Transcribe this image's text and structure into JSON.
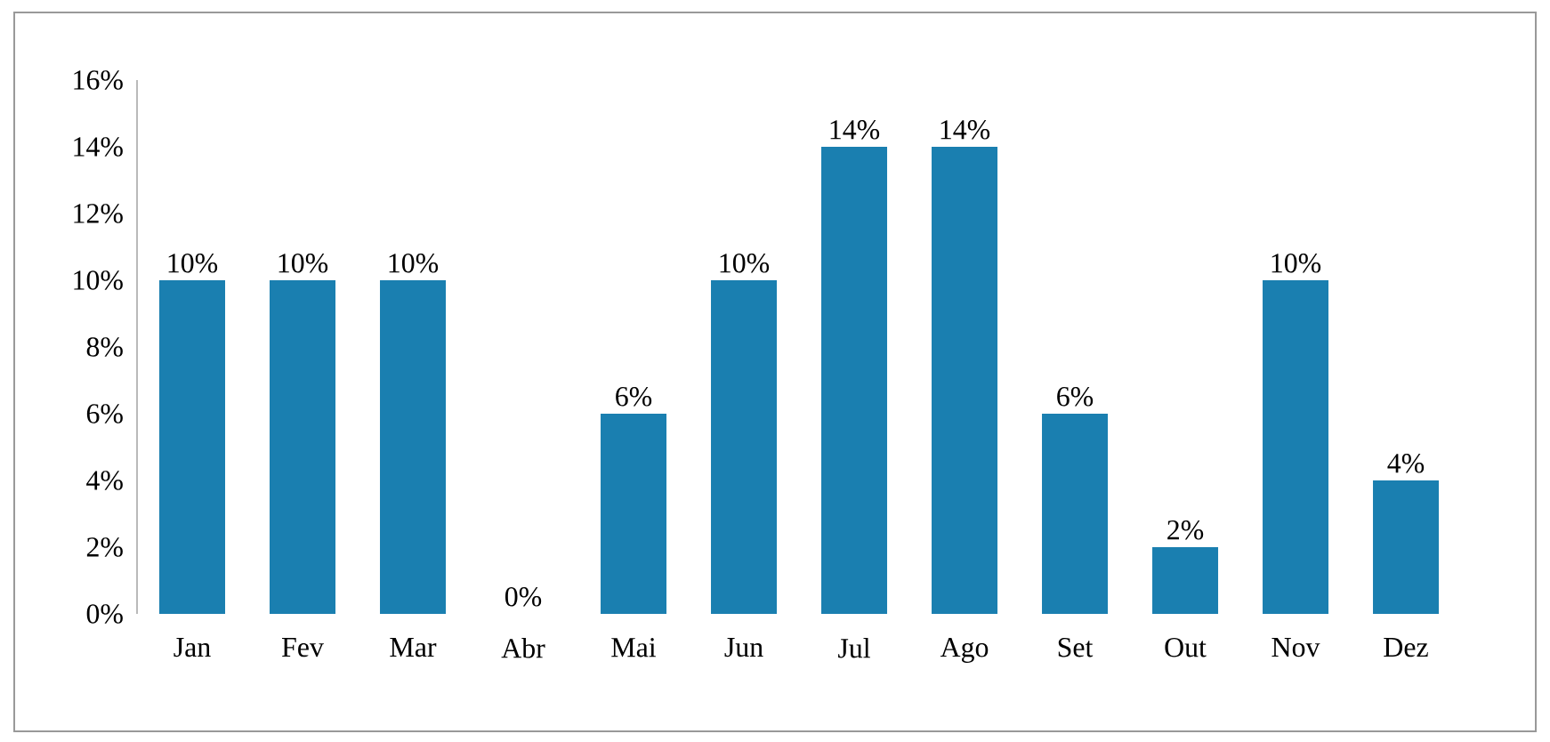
{
  "chart_data": {
    "type": "bar",
    "categories": [
      "Jan",
      "Fev",
      "Mar",
      "Abr",
      "Mai",
      "Jun",
      "Jul",
      "Ago",
      "Set",
      "Out",
      "Nov",
      "Dez"
    ],
    "values": [
      10,
      10,
      10,
      0,
      6,
      10,
      14,
      14,
      6,
      2,
      10,
      4
    ],
    "value_labels": [
      "10%",
      "10%",
      "10%",
      "0%",
      "6%",
      "10%",
      "14%",
      "14%",
      "6%",
      "2%",
      "10%",
      "4%"
    ],
    "color": "#1a7fb0",
    "ylim": [
      0,
      16
    ],
    "yticks": [
      {
        "value": 0,
        "label": "0%"
      },
      {
        "value": 2,
        "label": "2%"
      },
      {
        "value": 4,
        "label": "4%"
      },
      {
        "value": 6,
        "label": "6%"
      },
      {
        "value": 8,
        "label": "8%"
      },
      {
        "value": 10,
        "label": "10%"
      },
      {
        "value": 12,
        "label": "12%"
      },
      {
        "value": 14,
        "label": "14%"
      },
      {
        "value": 16,
        "label": "16%"
      }
    ],
    "grid": false
  }
}
